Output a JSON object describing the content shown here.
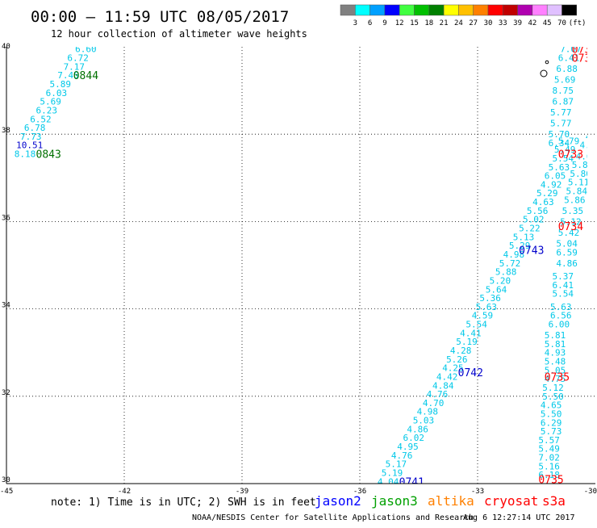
{
  "header": {
    "title": "00:00 – 11:59 UTC 08/05/2017",
    "subtitle": "12 hour collection of altimeter wave heights"
  },
  "colorbar": {
    "unit": "(ft)",
    "bins": [
      {
        "label": "3",
        "color": "#808080"
      },
      {
        "label": "6",
        "color": "#00ffff"
      },
      {
        "label": "9",
        "color": "#00a0ff"
      },
      {
        "label": "12",
        "color": "#0000ff"
      },
      {
        "label": "15",
        "color": "#40ff40"
      },
      {
        "label": "18",
        "color": "#00c000"
      },
      {
        "label": "21",
        "color": "#008000"
      },
      {
        "label": "24",
        "color": "#ffff00"
      },
      {
        "label": "27",
        "color": "#ffc000"
      },
      {
        "label": "30",
        "color": "#ff8000"
      },
      {
        "label": "33",
        "color": "#ff0000"
      },
      {
        "label": "39",
        "color": "#c00000"
      },
      {
        "label": "42",
        "color": "#b000b0"
      },
      {
        "label": "45",
        "color": "#ff80ff"
      },
      {
        "label": "70",
        "color": "#e0c0ff"
      },
      {
        "label": "",
        "color": "#000000"
      }
    ]
  },
  "footer": {
    "note": "note: 1) Time is in UTC; 2) SWH is in feet",
    "legend": [
      {
        "label": "jason2",
        "color": "#0000ff"
      },
      {
        "label": "jason3",
        "color": "#00a000"
      },
      {
        "label": "altika",
        "color": "#ff8000"
      },
      {
        "label": "cryosat",
        "color": "#ff0000"
      },
      {
        "label": "s3a",
        "color": "#ff0000"
      }
    ],
    "credit": "NOAA/NESDIS Center for Satellite Applications and Research",
    "timestamp": "Aug  6 12:27:14 UTC 2017"
  },
  "colors": {
    "value": "#00c8e8",
    "jason2": "#0000cc",
    "jason3": "#007000",
    "cryosat": "#ff0000",
    "grid": "#000000"
  },
  "chart_data": {
    "type": "scatter",
    "xlim": [
      -45,
      -30
    ],
    "ylim": [
      30,
      40
    ],
    "xticks": [
      "-45",
      "-42",
      "-39",
      "-36",
      "-33",
      "-30"
    ],
    "yticks": [
      "40",
      "38",
      "36",
      "34",
      "32",
      "30"
    ],
    "grid": true,
    "tracks": [
      {
        "satellite": "jason3",
        "values": [
          {
            "lon": -43.25,
            "lat": 39.95,
            "v": "6.60"
          },
          {
            "lon": -43.45,
            "lat": 39.75,
            "v": "6.72"
          },
          {
            "lon": -43.55,
            "lat": 39.55,
            "v": "7.17"
          },
          {
            "lon": -43.7,
            "lat": 39.35,
            "v": "7.45"
          },
          {
            "lon": -43.9,
            "lat": 39.15,
            "v": "5.89"
          },
          {
            "lon": -44.0,
            "lat": 38.95,
            "v": "6.03"
          },
          {
            "lon": -44.15,
            "lat": 38.75,
            "v": "5.69"
          },
          {
            "lon": -44.25,
            "lat": 38.55,
            "v": "6.23"
          },
          {
            "lon": -44.4,
            "lat": 38.35,
            "v": "6.52"
          },
          {
            "lon": -44.55,
            "lat": 38.15,
            "v": "6.78"
          },
          {
            "lon": -44.65,
            "lat": 37.95,
            "v": "7.73"
          },
          {
            "lon": -44.75,
            "lat": 37.75,
            "v": "10.51",
            "c": "jason2"
          },
          {
            "lon": -44.8,
            "lat": 37.55,
            "v": "8.18"
          }
        ]
      },
      {
        "satellite": "jason2",
        "values": [
          {
            "lon": -35.55,
            "lat": 30.05,
            "v": "4.04"
          },
          {
            "lon": -35.45,
            "lat": 30.25,
            "v": "5.19"
          },
          {
            "lon": -35.35,
            "lat": 30.45,
            "v": "5.17"
          },
          {
            "lon": -35.2,
            "lat": 30.65,
            "v": "4.76"
          },
          {
            "lon": -35.05,
            "lat": 30.85,
            "v": "4.95"
          },
          {
            "lon": -34.9,
            "lat": 31.05,
            "v": "6.02"
          },
          {
            "lon": -34.8,
            "lat": 31.25,
            "v": "4.86"
          },
          {
            "lon": -34.65,
            "lat": 31.45,
            "v": "5.03"
          },
          {
            "lon": -34.55,
            "lat": 31.65,
            "v": "4.98"
          },
          {
            "lon": -34.4,
            "lat": 31.85,
            "v": "4.70"
          },
          {
            "lon": -34.3,
            "lat": 32.05,
            "v": "4.76"
          },
          {
            "lon": -34.15,
            "lat": 32.25,
            "v": "4.84"
          },
          {
            "lon": -34.05,
            "lat": 32.45,
            "v": "4.42"
          },
          {
            "lon": -33.9,
            "lat": 32.65,
            "v": "4.25"
          },
          {
            "lon": -33.8,
            "lat": 32.85,
            "v": "5.26"
          },
          {
            "lon": -33.7,
            "lat": 33.05,
            "v": "4.28"
          },
          {
            "lon": -33.55,
            "lat": 33.25,
            "v": "5.19"
          },
          {
            "lon": -33.45,
            "lat": 33.45,
            "v": "4.41"
          },
          {
            "lon": -33.3,
            "lat": 33.65,
            "v": "5.54"
          },
          {
            "lon": -33.15,
            "lat": 33.85,
            "v": "4.59"
          },
          {
            "lon": -33.05,
            "lat": 34.05,
            "v": "5.63"
          },
          {
            "lon": -32.95,
            "lat": 34.25,
            "v": "5.36"
          },
          {
            "lon": -32.8,
            "lat": 34.45,
            "v": "5.64"
          },
          {
            "lon": -32.7,
            "lat": 34.65,
            "v": "5.20"
          },
          {
            "lon": -32.55,
            "lat": 34.85,
            "v": "5.88"
          },
          {
            "lon": -32.45,
            "lat": 35.05,
            "v": "5.72"
          },
          {
            "lon": -32.35,
            "lat": 35.25,
            "v": "4.98"
          },
          {
            "lon": -32.2,
            "lat": 35.45,
            "v": "5.29"
          },
          {
            "lon": -32.1,
            "lat": 35.65,
            "v": "5.13"
          },
          {
            "lon": -31.95,
            "lat": 35.85,
            "v": "5.22"
          },
          {
            "lon": -31.85,
            "lat": 36.05,
            "v": "5.02"
          },
          {
            "lon": -31.75,
            "lat": 36.25,
            "v": "5.56"
          },
          {
            "lon": -31.6,
            "lat": 36.45,
            "v": "4.63"
          },
          {
            "lon": -31.5,
            "lat": 36.65,
            "v": "5.29"
          },
          {
            "lon": -31.4,
            "lat": 36.85,
            "v": "4.92"
          },
          {
            "lon": -31.3,
            "lat": 37.05,
            "v": "6.05"
          },
          {
            "lon": -31.2,
            "lat": 37.25,
            "v": "5.63"
          },
          {
            "lon": -31.1,
            "lat": 37.45,
            "v": "5.54"
          },
          {
            "lon": -31.05,
            "lat": 37.65,
            "v": "5.49"
          },
          {
            "lon": -30.95,
            "lat": 37.85,
            "v": "5.79"
          }
        ]
      },
      {
        "satellite": "cryosat",
        "values": [
          {
            "lon": -31.45,
            "lat": 30.2,
            "v": "6.18"
          },
          {
            "lon": -31.45,
            "lat": 30.4,
            "v": "5.16"
          },
          {
            "lon": -31.45,
            "lat": 30.6,
            "v": "7.02"
          },
          {
            "lon": -31.45,
            "lat": 30.8,
            "v": "5.49"
          },
          {
            "lon": -31.45,
            "lat": 31.0,
            "v": "5.57"
          },
          {
            "lon": -31.4,
            "lat": 31.2,
            "v": "5.73"
          },
          {
            "lon": -31.4,
            "lat": 31.4,
            "v": "6.29"
          },
          {
            "lon": -31.4,
            "lat": 31.6,
            "v": "5.50"
          },
          {
            "lon": -31.4,
            "lat": 31.8,
            "v": "4.65"
          },
          {
            "lon": -31.35,
            "lat": 32.0,
            "v": "5.50"
          },
          {
            "lon": -31.35,
            "lat": 32.2,
            "v": "5.12"
          },
          {
            "lon": -31.3,
            "lat": 32.4,
            "v": "4.75"
          },
          {
            "lon": -31.3,
            "lat": 32.6,
            "v": "5.05"
          },
          {
            "lon": -31.3,
            "lat": 32.8,
            "v": "5.48"
          },
          {
            "lon": -31.3,
            "lat": 33.0,
            "v": "4.93"
          },
          {
            "lon": -31.3,
            "lat": 33.2,
            "v": "5.81"
          },
          {
            "lon": -31.3,
            "lat": 33.4,
            "v": "5.81"
          },
          {
            "lon": -31.2,
            "lat": 33.65,
            "v": "6.00"
          },
          {
            "lon": -31.15,
            "lat": 33.85,
            "v": "6.56"
          },
          {
            "lon": -31.15,
            "lat": 34.05,
            "v": "5.63"
          },
          {
            "lon": -31.1,
            "lat": 34.35,
            "v": "5.54"
          },
          {
            "lon": -31.1,
            "lat": 34.55,
            "v": "6.41"
          },
          {
            "lon": -31.1,
            "lat": 34.75,
            "v": "5.37"
          },
          {
            "lon": -31.0,
            "lat": 35.05,
            "v": "4.86"
          },
          {
            "lon": -31.0,
            "lat": 35.3,
            "v": "6.59"
          },
          {
            "lon": -31.0,
            "lat": 35.5,
            "v": "5.04"
          },
          {
            "lon": -30.95,
            "lat": 35.75,
            "v": "5.42"
          },
          {
            "lon": -30.9,
            "lat": 36.0,
            "v": "5.12"
          },
          {
            "lon": -30.85,
            "lat": 36.25,
            "v": "5.35"
          },
          {
            "lon": -30.8,
            "lat": 36.5,
            "v": "5.86"
          },
          {
            "lon": -30.75,
            "lat": 36.7,
            "v": "5.84"
          },
          {
            "lon": -30.7,
            "lat": 36.9,
            "v": "5.11"
          },
          {
            "lon": -30.65,
            "lat": 37.1,
            "v": "5.80"
          },
          {
            "lon": -30.6,
            "lat": 37.3,
            "v": "5.89"
          },
          {
            "lon": -30.5,
            "lat": 37.5,
            "v": "4.67"
          },
          {
            "lon": -30.4,
            "lat": 37.75,
            "v": "4.82"
          }
        ]
      },
      {
        "satellite": "s3a",
        "values": [
          {
            "lon": -31.2,
            "lat": 37.8,
            "v": "6.34"
          },
          {
            "lon": -31.2,
            "lat": 38.0,
            "v": "5.70"
          },
          {
            "lon": -31.15,
            "lat": 38.25,
            "v": "5.77"
          },
          {
            "lon": -31.15,
            "lat": 38.5,
            "v": "5.77"
          },
          {
            "lon": -31.1,
            "lat": 38.75,
            "v": "6.87"
          },
          {
            "lon": -31.1,
            "lat": 39.0,
            "v": "8.75"
          },
          {
            "lon": -31.05,
            "lat": 39.25,
            "v": "5.69"
          },
          {
            "lon": -31.0,
            "lat": 39.5,
            "v": "6.88"
          },
          {
            "lon": -30.95,
            "lat": 39.75,
            "v": "6.41"
          },
          {
            "lon": -30.9,
            "lat": 39.95,
            "v": "7.07"
          }
        ]
      },
      {
        "satellite": "s3a_b",
        "values": [
          {
            "lon": -30.25,
            "lat": 37.95,
            "v": "4.54"
          },
          {
            "lon": -30.15,
            "lat": 38.15,
            "v": "8.03"
          },
          {
            "lon": -30.05,
            "lat": 38.35,
            "v": "6.67"
          },
          {
            "lon": -29.95,
            "lat": 38.55,
            "v": "6.04"
          },
          {
            "lon": -29.85,
            "lat": 38.8,
            "v": "7.06"
          },
          {
            "lon": -29.75,
            "lat": 39.0,
            "v": "6.91"
          },
          {
            "lon": -29.65,
            "lat": 39.2,
            "v": "6."
          }
        ]
      }
    ],
    "time_labels": [
      {
        "lon": -43.3,
        "lat": 39.35,
        "text": "0844",
        "c": "jason3"
      },
      {
        "lon": -44.25,
        "lat": 37.55,
        "text": "0843",
        "c": "jason3"
      },
      {
        "lon": -35.0,
        "lat": 30.05,
        "text": "0741",
        "c": "jason2"
      },
      {
        "lon": -33.5,
        "lat": 32.55,
        "text": "0742",
        "c": "jason2"
      },
      {
        "lon": -31.95,
        "lat": 35.35,
        "text": "0743",
        "c": "jason2"
      },
      {
        "lon": -30.1,
        "lat": 37.85,
        "text": "07",
        "c": "jason2"
      },
      {
        "lon": -31.45,
        "lat": 30.1,
        "text": "0735",
        "c": "cryosat"
      },
      {
        "lon": -31.3,
        "lat": 32.45,
        "text": "0735",
        "c": "cryosat"
      },
      {
        "lon": -30.95,
        "lat": 35.9,
        "text": "0734",
        "c": "cryosat"
      },
      {
        "lon": -30.95,
        "lat": 37.55,
        "text": "0733",
        "c": "cryosat"
      },
      {
        "lon": -30.6,
        "lat": 39.75,
        "text": "0733",
        "c": "cryosat"
      },
      {
        "lon": -30.6,
        "lat": 39.95,
        "text": "0732",
        "c": "cryosat"
      }
    ]
  }
}
